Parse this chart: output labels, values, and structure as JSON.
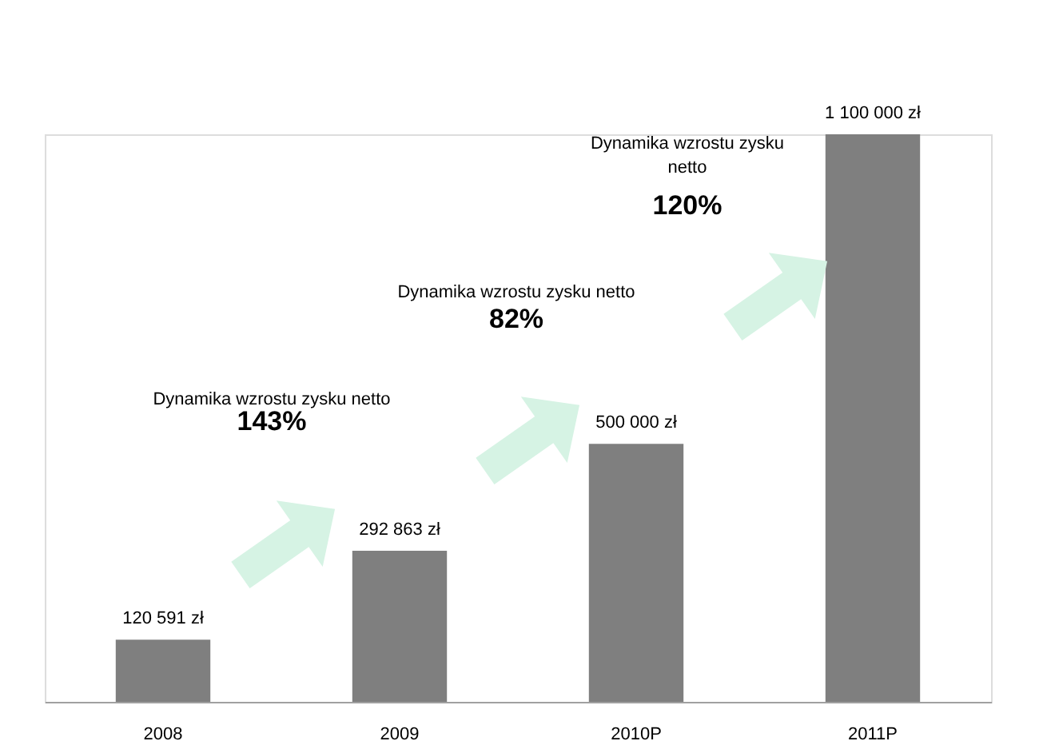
{
  "chart_data": {
    "type": "bar",
    "categories": [
      "2008",
      "2009",
      "2010P",
      "2011P"
    ],
    "values": [
      120591,
      292863,
      500000,
      1100000
    ],
    "value_labels": [
      "120 591 zł",
      "292 863 zł",
      "500 000 zł",
      "1 100 000 zł"
    ],
    "color": "#7f7f7f",
    "annotations": [
      "Dynamika wzrostu zysku netto",
      "143%",
      "Dynamika wzrostu zysku netto",
      "82%",
      "Dynamika wzrostu zysku netto",
      "120%"
    ],
    "grid": false,
    "tick_labels": "x"
  }
}
